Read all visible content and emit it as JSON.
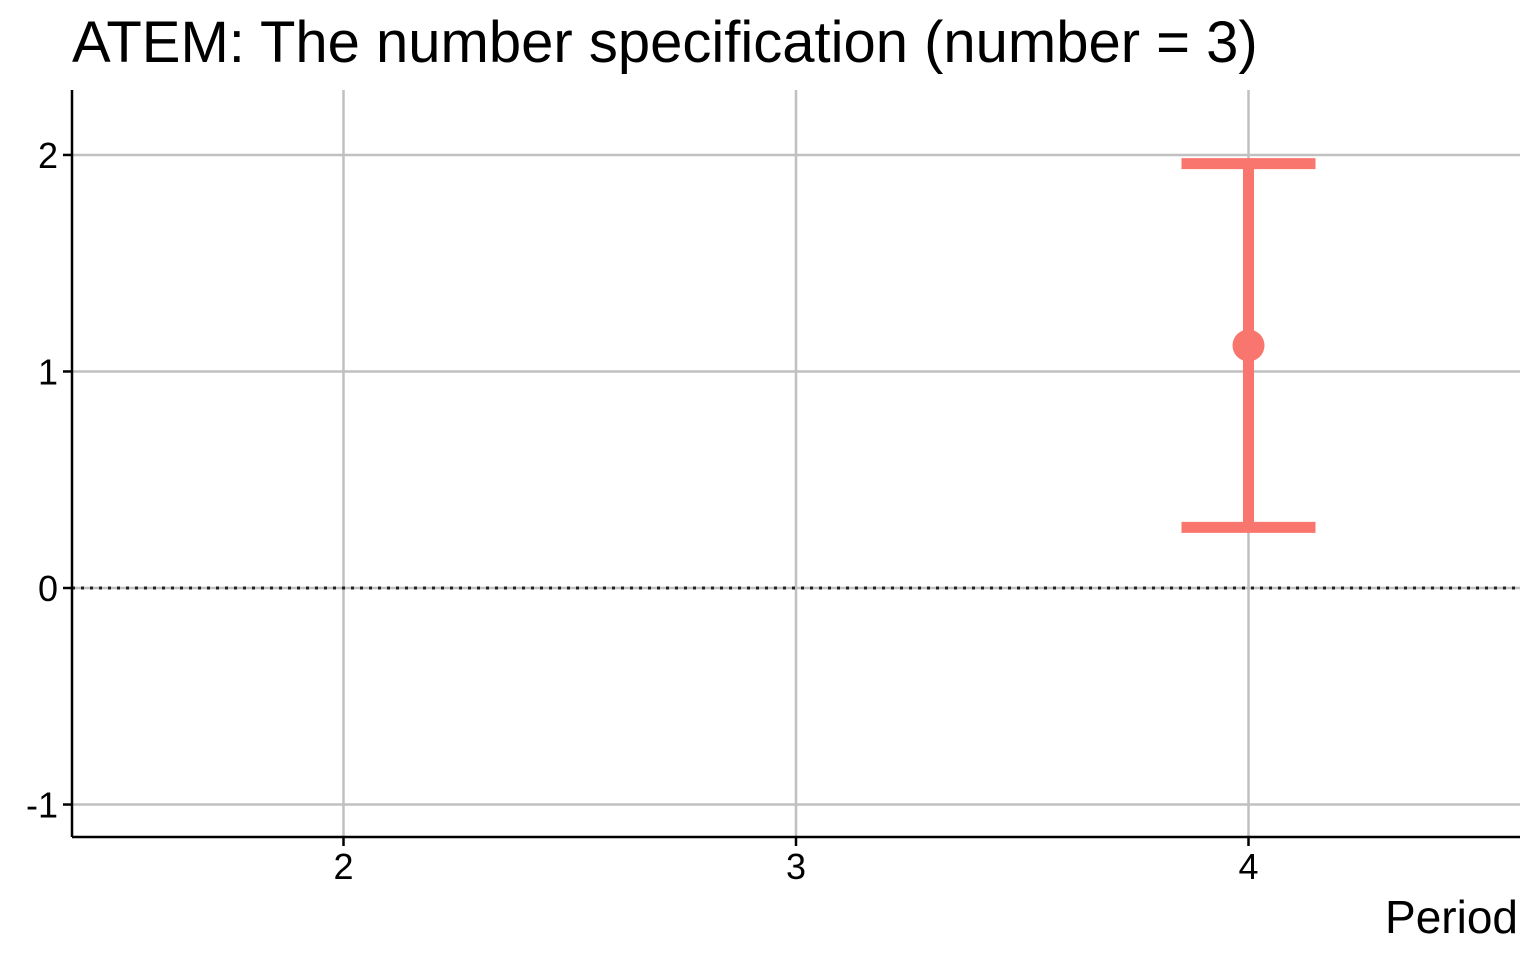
{
  "chart_data": {
    "type": "errorbar",
    "title": "ATEM: The number specification (number = 3)",
    "xlabel": "Period",
    "ylabel": "",
    "xlim": [
      1.4,
      4.6
    ],
    "ylim": [
      -1.15,
      2.3
    ],
    "x_ticks": [
      2,
      3,
      4
    ],
    "y_ticks": [
      -1,
      0,
      1,
      2
    ],
    "grid": true,
    "reference_line": {
      "y": 0,
      "style": "dotted"
    },
    "series": [
      {
        "color": "#F8766D",
        "points": [
          {
            "x": 4,
            "y": 1.12,
            "ymin": 0.28,
            "ymax": 1.96
          }
        ]
      }
    ]
  }
}
